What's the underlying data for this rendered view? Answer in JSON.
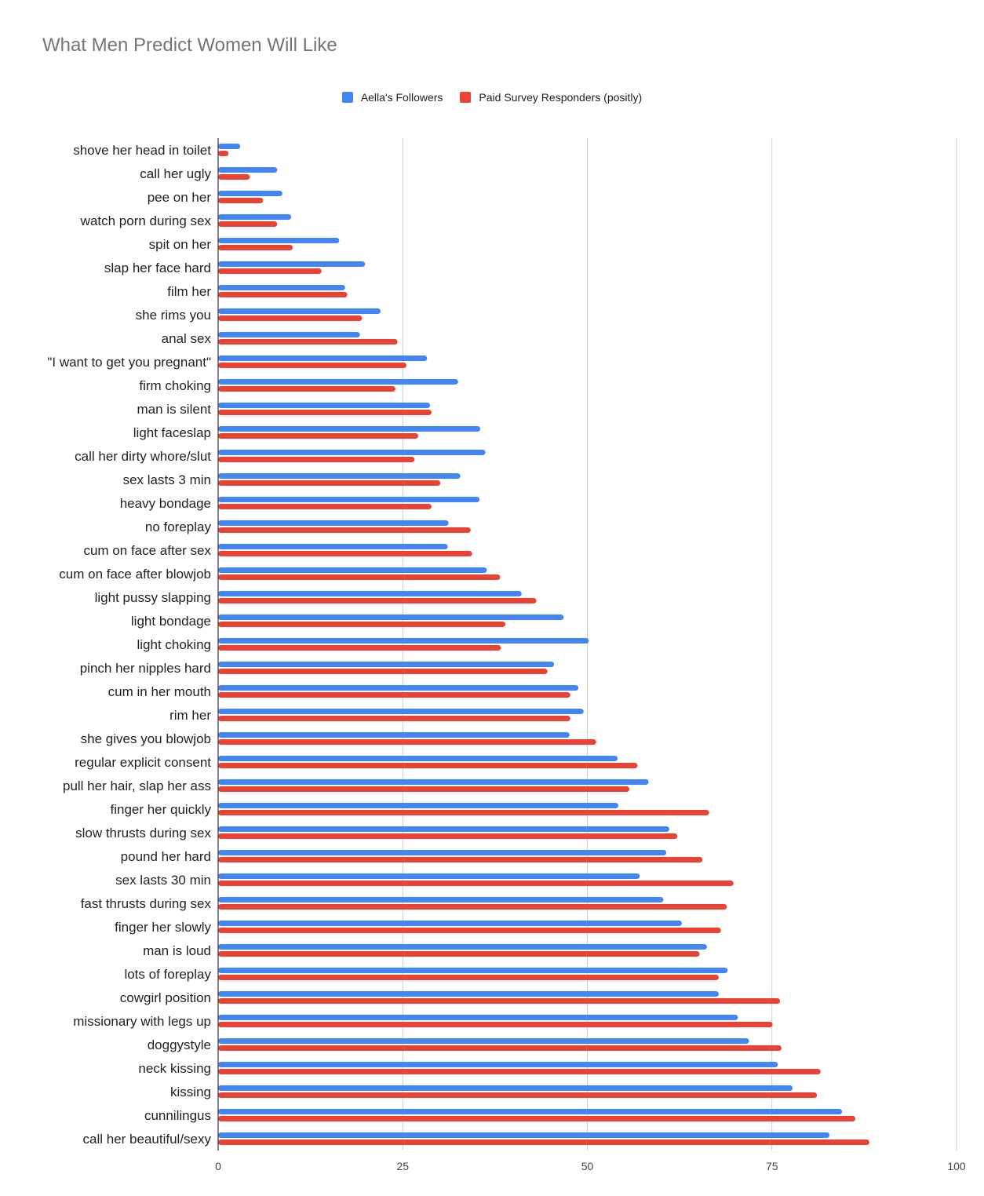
{
  "chart_data": {
    "type": "bar",
    "orientation": "horizontal",
    "title": "What Men Predict Women Will Like",
    "xlim": [
      0,
      100
    ],
    "xticks": [
      0,
      25,
      50,
      75,
      100
    ],
    "grid": true,
    "legend_position": "top",
    "categories": [
      "shove her head in toilet",
      "call her ugly",
      "pee on her",
      "watch porn during sex",
      "spit on her",
      "slap her face hard",
      "film her",
      "she rims you",
      "anal sex",
      "\"I want to get you pregnant\"",
      "firm choking",
      "man is silent",
      "light faceslap",
      "call her dirty whore/slut",
      "sex lasts 3 min",
      "heavy bondage",
      "no foreplay",
      "cum on face after sex",
      "cum on face after blowjob",
      "light pussy slapping",
      "light bondage",
      "light choking",
      "pinch her nipples hard",
      "cum in her mouth",
      "rim her",
      "she gives you blowjob",
      "regular explicit consent",
      "pull her hair, slap her ass",
      "finger her quickly",
      "slow thrusts during sex",
      "pound her hard",
      "sex lasts 30 min",
      "fast thrusts during sex",
      "finger her slowly",
      "man is loud",
      "lots of foreplay",
      "cowgirl position",
      "missionary with legs up",
      "doggystyle",
      "neck kissing",
      "kissing",
      "cunnilingus",
      "call her beautiful/sexy"
    ],
    "series": [
      {
        "name": "Aella's Followers",
        "color": "#4285f4",
        "values": [
          3,
          8,
          8.7,
          9.9,
          16.4,
          19.9,
          17.2,
          22,
          19.2,
          28.3,
          32.5,
          28.7,
          35.5,
          36.2,
          32.8,
          35.4,
          31.2,
          31.1,
          36.4,
          41.1,
          46.8,
          50.2,
          45.5,
          48.8,
          49.5,
          47.6,
          54.1,
          58.3,
          54.2,
          61.1,
          60.7,
          57.1,
          60.3,
          62.8,
          66.2,
          69,
          67.8,
          70.4,
          71.9,
          75.8,
          77.8,
          84.5,
          82.8
        ]
      },
      {
        "name": "Paid Survey Responders (positly)",
        "color": "#ea4335",
        "values": [
          1.4,
          4.3,
          6.1,
          8,
          10.1,
          14,
          17.5,
          19.5,
          24.3,
          25.5,
          24,
          28.9,
          27.1,
          26.6,
          30.1,
          28.9,
          34.2,
          34.4,
          38.2,
          43.1,
          38.9,
          38.3,
          44.6,
          47.7,
          47.7,
          51.2,
          56.8,
          55.7,
          66.5,
          62.2,
          65.6,
          69.8,
          68.9,
          68.1,
          65.2,
          67.8,
          76.1,
          75.1,
          76.3,
          81.6,
          81.1,
          86.3,
          88.2
        ]
      }
    ]
  }
}
